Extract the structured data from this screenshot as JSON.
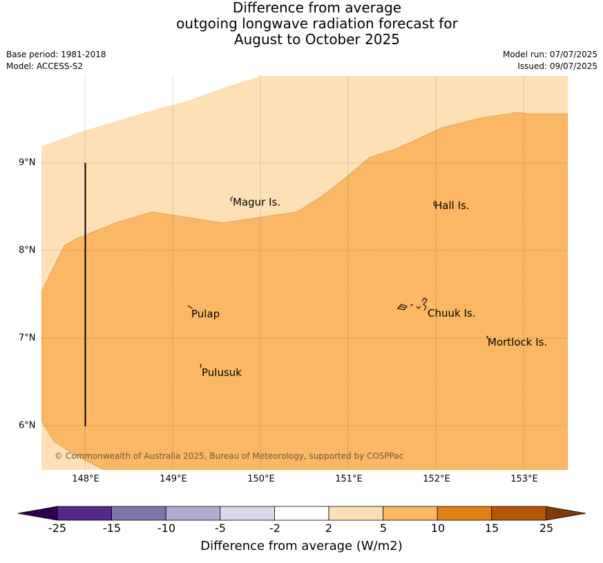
{
  "title": {
    "line1": "Difference from average",
    "line2": "outgoing longwave radiation forecast for",
    "line3": "August to October 2025"
  },
  "meta": {
    "base_period": "Base period: 1981-2018",
    "model": "Model: ACCESS-S2",
    "model_run": "Model run: 07/07/2025",
    "issued": "Issued: 09/07/2025"
  },
  "map": {
    "x_ticks": [
      "148°E",
      "149°E",
      "150°E",
      "151°E",
      "152°E",
      "153°E"
    ],
    "y_ticks": [
      "9°N",
      "8°N",
      "7°N",
      "6°N"
    ],
    "places": [
      "Magur Is.",
      "Hall Is.",
      "Pulap",
      "Chuuk Is.",
      "Mortlock Is.",
      "Pulusuk"
    ],
    "copyright": "© Commonwealth of Australia 2025, Bureau of Meteorology, supported by COSPPac",
    "fill_colors": {
      "band_2_to_5": "#fde0b6",
      "band_5_to_10": "#fbb763"
    }
  },
  "colorbar": {
    "labels": [
      "-25",
      "-15",
      "-10",
      "-5",
      "-2",
      "2",
      "5",
      "10",
      "15",
      "25"
    ],
    "colors": [
      "#2d004b",
      "#542788",
      "#8073ac",
      "#b2abd2",
      "#d8daeb",
      "#ffffff",
      "#fde0b6",
      "#fbb763",
      "#e08214",
      "#b35806",
      "#7f3b08"
    ],
    "title": "Difference from average (W/m2)"
  }
}
